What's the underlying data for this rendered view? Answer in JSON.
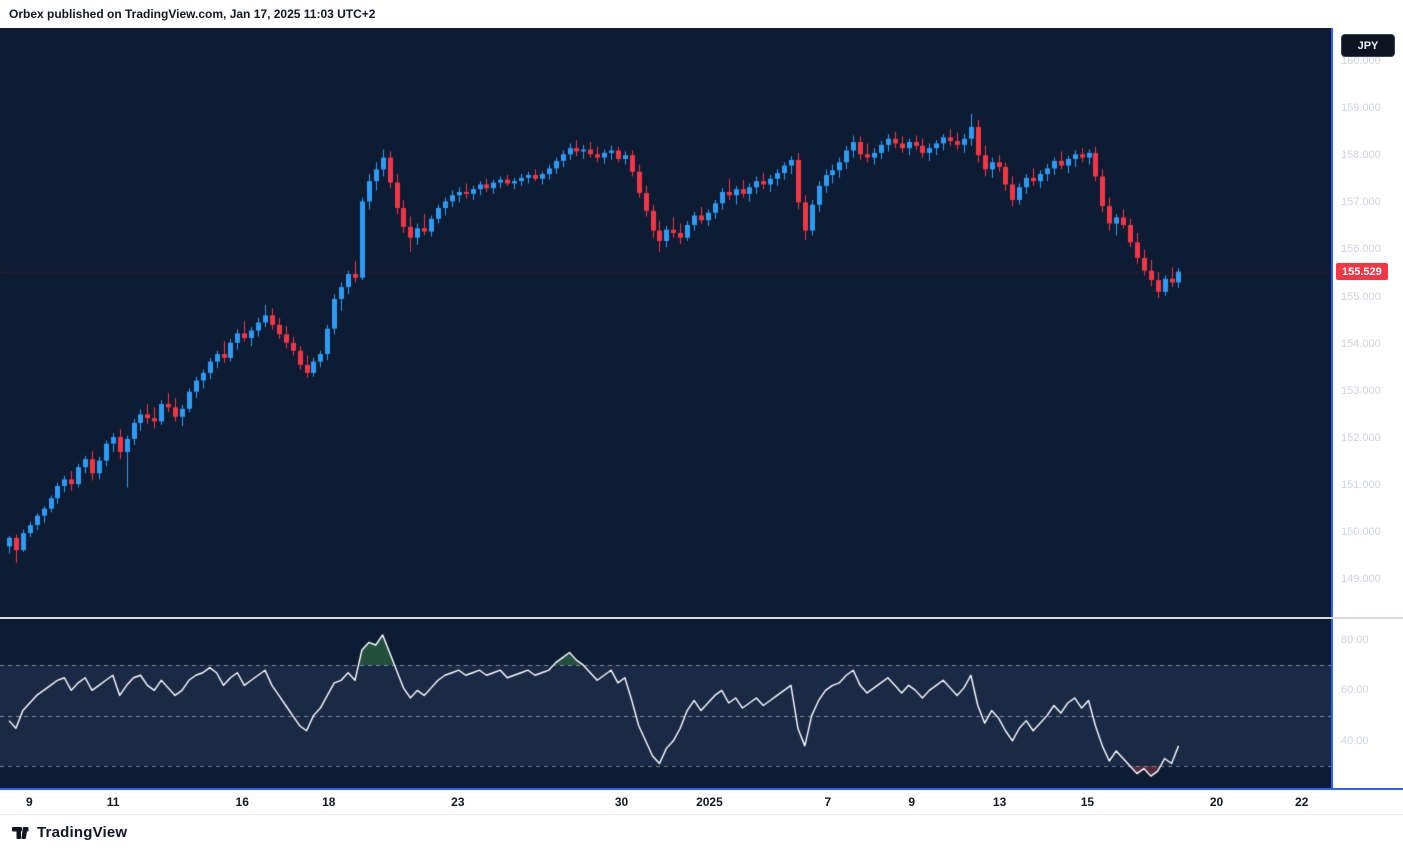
{
  "header": {
    "publisher_line": "Orbex published on TradingView.com, Jan 17, 2025 11:03 UTC+2"
  },
  "footer": {
    "brand": "TradingView"
  },
  "price_axis": {
    "currency_button": "JPY",
    "ticks": [
      "160.000",
      "159.000",
      "158.000",
      "157.000",
      "156.000",
      "155.000",
      "154.000",
      "153.000",
      "152.000",
      "151.000",
      "150.000",
      "149.000"
    ],
    "last_price_label": "155.529",
    "last_price": 155.529
  },
  "rsi_axis": {
    "ticks": [
      "80.00",
      "60.00",
      "40.00"
    ]
  },
  "time_axis": {
    "ticks": [
      {
        "label": "9",
        "pos": 0.022
      },
      {
        "label": "11",
        "pos": 0.085
      },
      {
        "label": "16",
        "pos": 0.182
      },
      {
        "label": "18",
        "pos": 0.247
      },
      {
        "label": "23",
        "pos": 0.344
      },
      {
        "label": "30",
        "pos": 0.467
      },
      {
        "label": "2025",
        "pos": 0.533,
        "year": true
      },
      {
        "label": "7",
        "pos": 0.622
      },
      {
        "label": "9",
        "pos": 0.685
      },
      {
        "label": "13",
        "pos": 0.751
      },
      {
        "label": "15",
        "pos": 0.817
      },
      {
        "label": "20",
        "pos": 0.914
      },
      {
        "label": "22",
        "pos": 0.978
      }
    ]
  },
  "colors": {
    "pane_bg": "#0d1c33",
    "up": "#2f9bf4",
    "down": "#f23645",
    "rsi_line": "#ffffff",
    "rsi_band": "rgba(127,142,211,0.12)",
    "rsi_level": "rgba(255,255,255,0.45)",
    "overbought_fill": "rgba(76,175,80,0.35)",
    "oversold_fill": "rgba(247,82,95,0.30)",
    "axis_text": "#cfd3dc",
    "frame_blue": "#2962ff",
    "badge_bg": "#f23645"
  },
  "chart_data": {
    "type": "candlestick",
    "price_ylim": [
      148.2,
      160.7
    ],
    "x_offset": 9,
    "x_spacing": 6.92,
    "candles": [
      [
        149.7,
        149.92,
        149.55,
        149.88
      ],
      [
        149.88,
        149.95,
        149.35,
        149.62
      ],
      [
        149.62,
        150.05,
        149.58,
        149.98
      ],
      [
        149.98,
        150.22,
        149.9,
        150.15
      ],
      [
        150.15,
        150.4,
        150.05,
        150.35
      ],
      [
        150.35,
        150.55,
        150.2,
        150.5
      ],
      [
        150.5,
        150.78,
        150.42,
        150.72
      ],
      [
        150.72,
        151.05,
        150.6,
        150.98
      ],
      [
        150.98,
        151.2,
        150.85,
        151.12
      ],
      [
        151.12,
        151.3,
        150.88,
        151.02
      ],
      [
        151.02,
        151.45,
        150.95,
        151.38
      ],
      [
        151.38,
        151.62,
        151.25,
        151.55
      ],
      [
        151.55,
        151.72,
        151.1,
        151.25
      ],
      [
        151.25,
        151.6,
        151.12,
        151.52
      ],
      [
        151.52,
        151.95,
        151.4,
        151.88
      ],
      [
        151.88,
        152.1,
        151.7,
        152.02
      ],
      [
        152.02,
        152.18,
        151.55,
        151.7
      ],
      [
        151.7,
        152.05,
        150.95,
        151.98
      ],
      [
        151.98,
        152.4,
        151.85,
        152.32
      ],
      [
        152.32,
        152.6,
        152.15,
        152.5
      ],
      [
        152.5,
        152.72,
        152.3,
        152.42
      ],
      [
        152.42,
        152.65,
        152.2,
        152.35
      ],
      [
        152.35,
        152.8,
        152.28,
        152.72
      ],
      [
        152.72,
        152.95,
        152.55,
        152.65
      ],
      [
        152.65,
        152.85,
        152.35,
        152.45
      ],
      [
        152.45,
        152.7,
        152.25,
        152.62
      ],
      [
        152.62,
        153.05,
        152.55,
        152.98
      ],
      [
        152.98,
        153.3,
        152.85,
        153.22
      ],
      [
        153.22,
        153.45,
        153.05,
        153.38
      ],
      [
        153.38,
        153.7,
        153.25,
        153.62
      ],
      [
        153.62,
        153.85,
        153.48,
        153.78
      ],
      [
        153.78,
        154.05,
        153.6,
        153.7
      ],
      [
        153.7,
        154.1,
        153.62,
        154.02
      ],
      [
        154.02,
        154.3,
        153.88,
        154.22
      ],
      [
        154.22,
        154.48,
        154.05,
        154.12
      ],
      [
        154.12,
        154.35,
        153.95,
        154.28
      ],
      [
        154.28,
        154.55,
        154.15,
        154.45
      ],
      [
        154.45,
        154.82,
        154.35,
        154.6
      ],
      [
        154.6,
        154.75,
        154.3,
        154.4
      ],
      [
        154.4,
        154.55,
        154.1,
        154.2
      ],
      [
        154.2,
        154.38,
        153.9,
        154.02
      ],
      [
        154.02,
        154.15,
        153.75,
        153.85
      ],
      [
        153.85,
        153.95,
        153.45,
        153.55
      ],
      [
        153.55,
        153.75,
        153.28,
        153.38
      ],
      [
        153.38,
        153.7,
        153.3,
        153.62
      ],
      [
        153.62,
        153.85,
        153.5,
        153.78
      ],
      [
        153.78,
        154.4,
        153.65,
        154.32
      ],
      [
        154.32,
        155.05,
        154.2,
        154.95
      ],
      [
        154.95,
        155.3,
        154.7,
        155.2
      ],
      [
        155.2,
        155.55,
        155.05,
        155.48
      ],
      [
        155.48,
        155.75,
        155.3,
        155.4
      ],
      [
        155.4,
        157.1,
        155.35,
        157.02
      ],
      [
        157.02,
        157.6,
        156.85,
        157.45
      ],
      [
        157.45,
        157.85,
        157.25,
        157.7
      ],
      [
        157.7,
        158.12,
        157.55,
        157.95
      ],
      [
        157.95,
        158.08,
        157.3,
        157.42
      ],
      [
        157.42,
        157.6,
        156.75,
        156.88
      ],
      [
        156.88,
        157.05,
        156.35,
        156.48
      ],
      [
        156.48,
        156.7,
        155.95,
        156.25
      ],
      [
        156.25,
        156.55,
        156.1,
        156.45
      ],
      [
        156.45,
        156.75,
        156.3,
        156.38
      ],
      [
        156.38,
        156.72,
        156.28,
        156.65
      ],
      [
        156.65,
        156.95,
        156.55,
        156.88
      ],
      [
        156.88,
        157.1,
        156.72,
        157.02
      ],
      [
        157.02,
        157.25,
        156.9,
        157.15
      ],
      [
        157.15,
        157.32,
        157.0,
        157.22
      ],
      [
        157.22,
        157.4,
        157.08,
        157.18
      ],
      [
        157.18,
        157.35,
        157.05,
        157.28
      ],
      [
        157.28,
        157.45,
        157.15,
        157.38
      ],
      [
        157.38,
        157.5,
        157.22,
        157.3
      ],
      [
        157.3,
        157.48,
        157.18,
        157.42
      ],
      [
        157.42,
        157.55,
        157.3,
        157.48
      ],
      [
        157.48,
        157.58,
        157.35,
        157.4
      ],
      [
        157.4,
        157.52,
        157.28,
        157.45
      ],
      [
        157.45,
        157.6,
        157.35,
        157.52
      ],
      [
        157.52,
        157.65,
        157.4,
        157.58
      ],
      [
        157.58,
        157.7,
        157.45,
        157.5
      ],
      [
        157.5,
        157.65,
        157.38,
        157.6
      ],
      [
        157.6,
        157.8,
        157.48,
        157.72
      ],
      [
        157.72,
        157.95,
        157.6,
        157.88
      ],
      [
        157.88,
        158.1,
        157.75,
        158.02
      ],
      [
        158.02,
        158.25,
        157.9,
        158.15
      ],
      [
        158.15,
        158.32,
        157.98,
        158.08
      ],
      [
        158.08,
        158.22,
        157.92,
        158.12
      ],
      [
        158.12,
        158.28,
        157.95,
        158.02
      ],
      [
        158.02,
        158.18,
        157.85,
        157.95
      ],
      [
        157.95,
        158.12,
        157.82,
        158.05
      ],
      [
        158.05,
        158.2,
        157.9,
        158.1
      ],
      [
        158.1,
        158.18,
        157.85,
        157.92
      ],
      [
        157.92,
        158.08,
        157.8,
        158.0
      ],
      [
        158.0,
        158.1,
        157.55,
        157.65
      ],
      [
        157.65,
        157.8,
        157.1,
        157.2
      ],
      [
        157.2,
        157.35,
        156.7,
        156.82
      ],
      [
        156.82,
        156.95,
        156.25,
        156.4
      ],
      [
        156.4,
        156.6,
        155.95,
        156.18
      ],
      [
        156.18,
        156.5,
        156.05,
        156.42
      ],
      [
        156.42,
        156.68,
        156.25,
        156.35
      ],
      [
        156.35,
        156.55,
        156.12,
        156.25
      ],
      [
        156.25,
        156.6,
        156.18,
        156.52
      ],
      [
        156.52,
        156.8,
        156.4,
        156.72
      ],
      [
        156.72,
        156.9,
        156.55,
        156.62
      ],
      [
        156.62,
        156.85,
        156.5,
        156.78
      ],
      [
        156.78,
        157.05,
        156.65,
        156.98
      ],
      [
        156.98,
        157.3,
        156.85,
        157.22
      ],
      [
        157.22,
        157.5,
        157.05,
        157.15
      ],
      [
        157.15,
        157.35,
        156.95,
        157.28
      ],
      [
        157.28,
        157.48,
        157.1,
        157.18
      ],
      [
        157.18,
        157.4,
        157.02,
        157.32
      ],
      [
        157.32,
        157.55,
        157.18,
        157.45
      ],
      [
        157.45,
        157.62,
        157.28,
        157.38
      ],
      [
        157.38,
        157.58,
        157.22,
        157.5
      ],
      [
        157.5,
        157.7,
        157.35,
        157.62
      ],
      [
        157.62,
        157.85,
        157.48,
        157.78
      ],
      [
        157.78,
        157.98,
        157.6,
        157.9
      ],
      [
        157.9,
        158.05,
        156.85,
        157.0
      ],
      [
        157.0,
        157.15,
        156.2,
        156.4
      ],
      [
        156.4,
        157.05,
        156.3,
        156.95
      ],
      [
        156.95,
        157.45,
        156.8,
        157.35
      ],
      [
        157.35,
        157.7,
        157.2,
        157.58
      ],
      [
        157.58,
        157.8,
        157.4,
        157.68
      ],
      [
        157.68,
        157.95,
        157.52,
        157.85
      ],
      [
        157.85,
        158.2,
        157.7,
        158.1
      ],
      [
        158.1,
        158.42,
        157.95,
        158.28
      ],
      [
        158.28,
        158.4,
        157.9,
        158.02
      ],
      [
        158.02,
        158.25,
        157.85,
        157.95
      ],
      [
        157.95,
        158.15,
        157.8,
        158.05
      ],
      [
        158.05,
        158.3,
        157.92,
        158.22
      ],
      [
        158.22,
        158.45,
        158.08,
        158.35
      ],
      [
        158.35,
        158.5,
        158.15,
        158.25
      ],
      [
        158.25,
        158.4,
        158.05,
        158.15
      ],
      [
        158.15,
        158.35,
        158.0,
        158.28
      ],
      [
        158.28,
        158.42,
        158.12,
        158.2
      ],
      [
        158.2,
        158.35,
        157.95,
        158.05
      ],
      [
        158.05,
        158.25,
        157.88,
        158.15
      ],
      [
        158.15,
        158.32,
        158.0,
        158.25
      ],
      [
        158.25,
        158.45,
        158.1,
        158.38
      ],
      [
        158.38,
        158.55,
        158.2,
        158.3
      ],
      [
        158.3,
        158.48,
        158.12,
        158.22
      ],
      [
        158.22,
        158.45,
        158.05,
        158.35
      ],
      [
        158.35,
        158.88,
        158.2,
        158.6
      ],
      [
        158.6,
        158.75,
        157.85,
        158.0
      ],
      [
        158.0,
        158.2,
        157.55,
        157.7
      ],
      [
        157.7,
        157.95,
        157.52,
        157.85
      ],
      [
        157.85,
        158.0,
        157.65,
        157.75
      ],
      [
        157.75,
        157.85,
        157.25,
        157.38
      ],
      [
        157.38,
        157.55,
        156.92,
        157.05
      ],
      [
        157.05,
        157.4,
        156.95,
        157.32
      ],
      [
        157.32,
        157.6,
        157.18,
        157.52
      ],
      [
        157.52,
        157.72,
        157.35,
        157.45
      ],
      [
        157.45,
        157.68,
        157.3,
        157.6
      ],
      [
        157.6,
        157.82,
        157.45,
        157.72
      ],
      [
        157.72,
        157.95,
        157.58,
        157.88
      ],
      [
        157.88,
        158.08,
        157.7,
        157.78
      ],
      [
        157.78,
        157.98,
        157.62,
        157.92
      ],
      [
        157.92,
        158.1,
        157.75,
        158.02
      ],
      [
        158.02,
        158.15,
        157.85,
        157.95
      ],
      [
        157.95,
        158.12,
        157.8,
        158.05
      ],
      [
        158.05,
        158.18,
        157.45,
        157.55
      ],
      [
        157.55,
        157.7,
        156.8,
        156.92
      ],
      [
        156.92,
        157.1,
        156.4,
        156.55
      ],
      [
        156.55,
        156.75,
        156.3,
        156.68
      ],
      [
        156.68,
        156.85,
        156.45,
        156.52
      ],
      [
        156.52,
        156.65,
        156.05,
        156.15
      ],
      [
        156.15,
        156.35,
        155.7,
        155.82
      ],
      [
        155.82,
        156.0,
        155.45,
        155.55
      ],
      [
        155.55,
        155.78,
        155.22,
        155.35
      ],
      [
        155.35,
        155.52,
        154.97,
        155.1
      ],
      [
        155.1,
        155.45,
        155.02,
        155.38
      ],
      [
        155.38,
        155.62,
        155.2,
        155.3
      ],
      [
        155.3,
        155.6,
        155.18,
        155.53
      ]
    ],
    "indicator": {
      "type": "rsi_line",
      "ylim": [
        21.3,
        88.3
      ],
      "levels": [
        70,
        50,
        30
      ],
      "band": [
        30,
        70
      ],
      "axis_ticks": [
        80,
        60,
        40
      ],
      "values": [
        48,
        45,
        52,
        55,
        58,
        60,
        62,
        64,
        65,
        60,
        63,
        65,
        60,
        62,
        64,
        66,
        58,
        62,
        65,
        66,
        62,
        60,
        64,
        61,
        58,
        60,
        64,
        66,
        67,
        69,
        67,
        62,
        65,
        67,
        62,
        64,
        66,
        68,
        62,
        58,
        54,
        50,
        46,
        44,
        50,
        53,
        58,
        63,
        64,
        67,
        64,
        76,
        79,
        78,
        82,
        75,
        68,
        61,
        57,
        60,
        58,
        61,
        64,
        66,
        67,
        68,
        66,
        67,
        68,
        66,
        67,
        68,
        65,
        66,
        67,
        68,
        66,
        67,
        68,
        71,
        73,
        75,
        72,
        70,
        67,
        64,
        66,
        68,
        63,
        65,
        56,
        46,
        40,
        34,
        31,
        37,
        40,
        45,
        52,
        56,
        52,
        55,
        58,
        60,
        55,
        57,
        53,
        55,
        57,
        54,
        56,
        58,
        60,
        62,
        45,
        38,
        50,
        56,
        60,
        62,
        63,
        66,
        68,
        62,
        59,
        61,
        63,
        65,
        62,
        59,
        62,
        60,
        57,
        60,
        62,
        64,
        61,
        58,
        61,
        66,
        54,
        47,
        52,
        49,
        44,
        40,
        45,
        48,
        44,
        47,
        50,
        54,
        51,
        55,
        57,
        53,
        56,
        46,
        38,
        32,
        36,
        33,
        30,
        27,
        29,
        26,
        28,
        33,
        31,
        38
      ]
    }
  }
}
